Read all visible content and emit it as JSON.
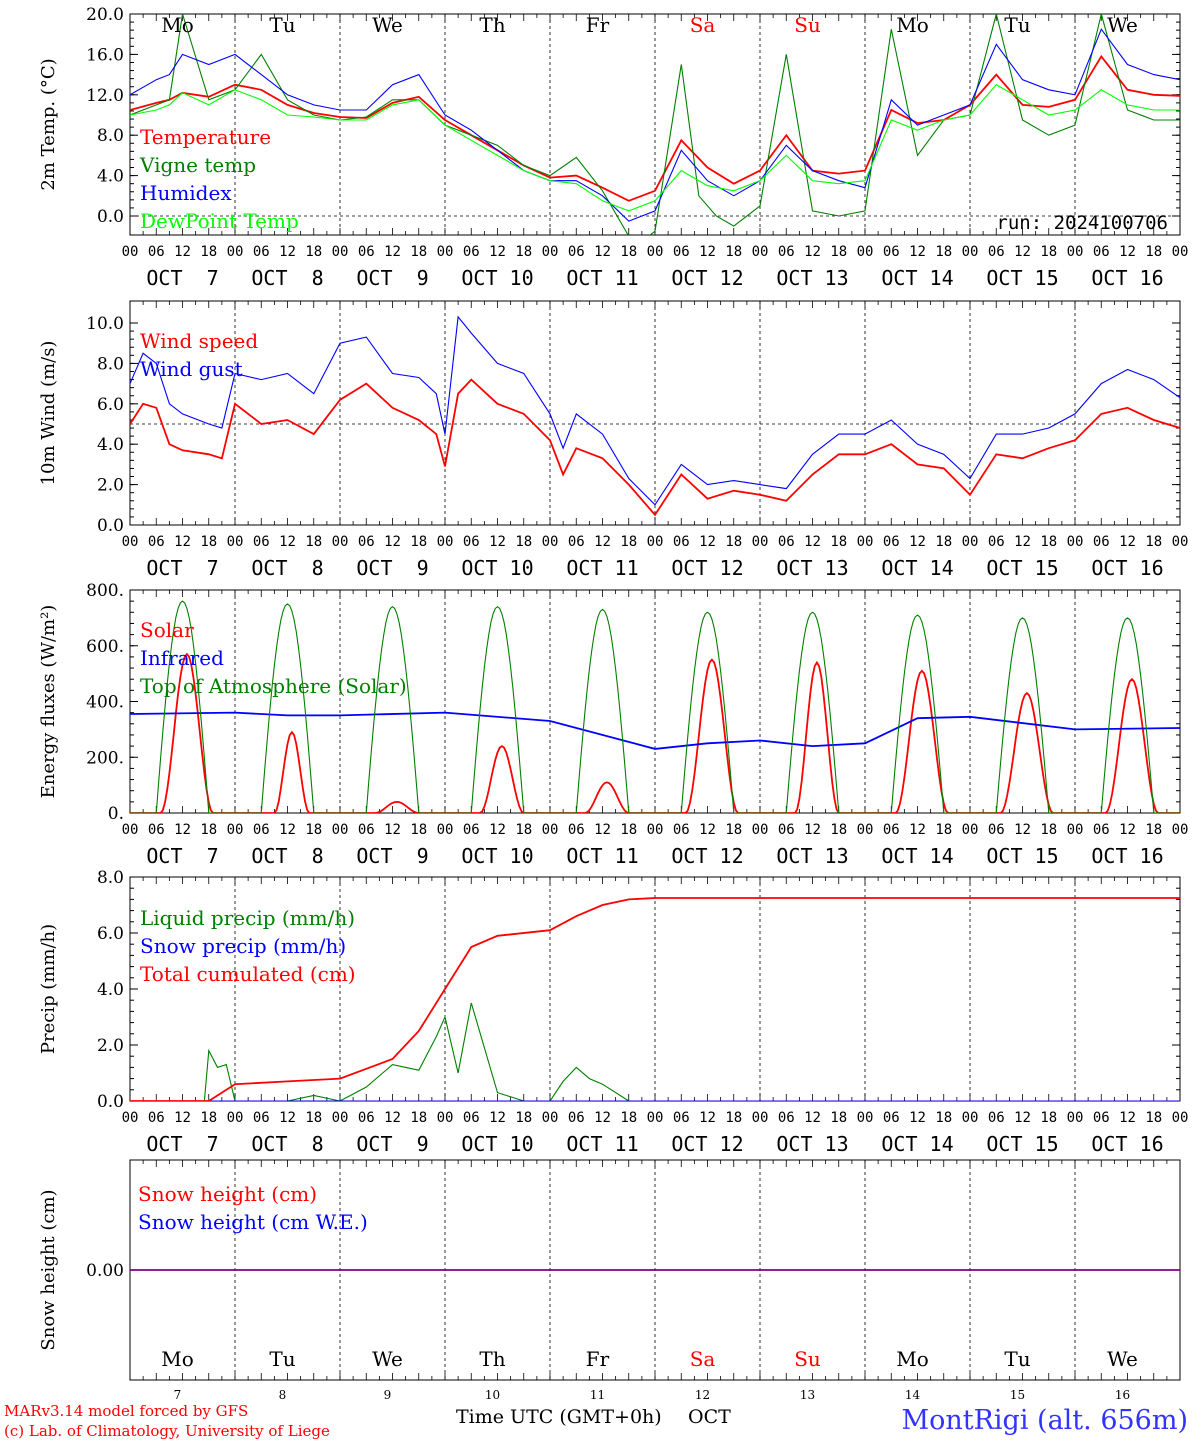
{
  "days": [
    "Mo",
    "Tu",
    "We",
    "Th",
    "Fr",
    "Sa",
    "Su",
    "Mo",
    "Tu",
    "We"
  ],
  "weekend_days": [
    5,
    6
  ],
  "dates": [
    "OCT  7",
    "OCT  8",
    "OCT  9",
    "OCT 10",
    "OCT 11",
    "OCT 12",
    "OCT 13",
    "OCT 14",
    "OCT 15",
    "OCT 16"
  ],
  "hour_labels": [
    "00",
    "06",
    "12",
    "18"
  ],
  "final_hour_label": "00",
  "footer": {
    "credit_line1": "MARv3.14 model forced by GFS",
    "credit_line2": "(c) Lab. of Climatology, University of Liege",
    "xlabel": "Time UTC (GMT+0h)",
    "month": "OCT",
    "station": "MontRigi (alt. 656m)",
    "day_numbers": [
      "7",
      "8",
      "9",
      "10",
      "11",
      "12",
      "13",
      "14",
      "15",
      "16"
    ]
  },
  "colors": {
    "red": "#ff0000",
    "green": "#008000",
    "blue": "#0000ff",
    "lightgreen": "#00ff00",
    "purple": "#800080",
    "station": "#3333ff"
  },
  "chart_data": [
    {
      "type": "line",
      "ylabel": "2m Temp. (°C)",
      "ylim": [
        -1,
        20
      ],
      "yticks": [
        "0.0",
        "4.0",
        "8.0",
        "12.0",
        "16.0",
        "20.0"
      ],
      "annotation": "run: 2024100706",
      "ref_line": 0,
      "x_unit": "hours since OCT 7 00 UTC",
      "series": [
        {
          "name": "Temperature",
          "color": "red",
          "x": [
            0,
            6,
            9,
            12,
            18,
            24,
            30,
            36,
            42,
            48,
            54,
            60,
            66,
            72,
            78,
            84,
            90,
            96,
            102,
            108,
            114,
            120,
            126,
            132,
            138,
            144,
            150,
            156,
            162,
            168,
            174,
            180,
            186,
            192,
            198,
            204,
            210,
            216,
            222,
            228,
            234,
            240
          ],
          "y": [
            10.5,
            11.2,
            11.5,
            12.2,
            11.8,
            13.0,
            12.5,
            11.0,
            10.2,
            9.8,
            9.7,
            11.2,
            11.8,
            9.5,
            8.0,
            6.5,
            5.0,
            3.8,
            4.0,
            2.8,
            1.5,
            2.5,
            7.5,
            4.8,
            3.2,
            4.5,
            8.0,
            4.5,
            4.2,
            4.5,
            10.5,
            9.2,
            9.5,
            11.0,
            14.0,
            11.0,
            10.8,
            11.5,
            15.8,
            12.5,
            12.0,
            11.9
          ]
        },
        {
          "name": "Vigne temp",
          "color": "green",
          "x": [
            0,
            6,
            9,
            12,
            18,
            24,
            30,
            36,
            42,
            48,
            54,
            60,
            66,
            72,
            78,
            84,
            90,
            96,
            102,
            108,
            114,
            117,
            120,
            126,
            130,
            134,
            138,
            144,
            150,
            156,
            162,
            168,
            174,
            180,
            186,
            192,
            198,
            204,
            210,
            216,
            222,
            228,
            234,
            240
          ],
          "y": [
            10.0,
            11.0,
            11.5,
            20.0,
            11.5,
            12.5,
            16.0,
            11.5,
            10.0,
            9.5,
            9.8,
            11.5,
            11.5,
            9.0,
            8.0,
            7.0,
            5.0,
            4.0,
            5.8,
            2.5,
            -2.0,
            -2.5,
            -1.5,
            15.0,
            2.0,
            0.0,
            -1.0,
            1.0,
            16.0,
            0.5,
            0.0,
            0.5,
            18.5,
            6.0,
            9.5,
            10.0,
            20.0,
            9.5,
            8.0,
            9.0,
            20.0,
            10.5,
            9.5,
            9.5
          ]
        },
        {
          "name": "Humidex",
          "color": "blue",
          "x": [
            0,
            6,
            9,
            12,
            18,
            24,
            30,
            36,
            42,
            48,
            54,
            60,
            66,
            72,
            78,
            84,
            90,
            96,
            102,
            108,
            114,
            120,
            126,
            132,
            138,
            144,
            150,
            156,
            162,
            168,
            174,
            180,
            186,
            192,
            198,
            204,
            210,
            216,
            222,
            228,
            234,
            240
          ],
          "y": [
            12.0,
            13.5,
            14.0,
            16.0,
            15.0,
            16.0,
            14.0,
            12.0,
            11.0,
            10.5,
            10.5,
            13.0,
            14.0,
            10.0,
            8.5,
            6.5,
            4.5,
            3.5,
            3.5,
            2.0,
            -0.5,
            0.5,
            6.5,
            3.5,
            2.0,
            3.5,
            7.0,
            4.5,
            3.5,
            2.8,
            11.5,
            9.0,
            10.0,
            11.0,
            17.0,
            13.5,
            12.5,
            12.0,
            18.5,
            15.0,
            14.0,
            13.5
          ]
        },
        {
          "name": "DewPoint Temp",
          "color": "lightgreen",
          "x": [
            0,
            6,
            9,
            12,
            18,
            24,
            30,
            36,
            42,
            48,
            54,
            60,
            66,
            72,
            78,
            84,
            90,
            96,
            102,
            108,
            114,
            120,
            126,
            132,
            138,
            144,
            150,
            156,
            162,
            168,
            174,
            180,
            186,
            192,
            198,
            204,
            210,
            216,
            222,
            228,
            234,
            240
          ],
          "y": [
            10.0,
            10.5,
            11.0,
            12.2,
            11.0,
            12.5,
            11.5,
            10.0,
            9.8,
            9.5,
            9.5,
            11.0,
            11.5,
            9.0,
            7.5,
            6.0,
            4.5,
            3.5,
            3.2,
            1.5,
            0.5,
            1.5,
            4.5,
            3.0,
            2.5,
            3.5,
            6.0,
            3.5,
            3.2,
            3.5,
            9.5,
            8.5,
            9.5,
            10.0,
            13.0,
            11.5,
            10.0,
            10.5,
            12.5,
            11.0,
            10.5,
            10.5
          ]
        }
      ]
    },
    {
      "type": "line",
      "ylabel": "10m Wind (m/s)",
      "ylim": [
        0,
        11
      ],
      "yticks": [
        "0.0",
        "2.0",
        "4.0",
        "6.0",
        "8.0",
        "10.0"
      ],
      "ref_line": 5,
      "x_unit": "hours since OCT 7 00 UTC",
      "series": [
        {
          "name": "Wind speed",
          "color": "red",
          "x": [
            0,
            3,
            6,
            9,
            12,
            18,
            21,
            24,
            30,
            36,
            42,
            48,
            54,
            60,
            66,
            70,
            72,
            75,
            78,
            84,
            90,
            96,
            99,
            102,
            108,
            114,
            120,
            126,
            132,
            138,
            144,
            150,
            156,
            162,
            168,
            174,
            180,
            186,
            192,
            198,
            204,
            210,
            216,
            222,
            228,
            234,
            240
          ],
          "y": [
            5.0,
            6.0,
            5.8,
            4.0,
            3.7,
            3.5,
            3.3,
            6.0,
            5.0,
            5.2,
            4.5,
            6.2,
            7.0,
            5.8,
            5.2,
            4.5,
            2.9,
            6.5,
            7.2,
            6.0,
            5.5,
            4.2,
            2.5,
            3.8,
            3.3,
            2.0,
            0.5,
            2.5,
            1.3,
            1.7,
            1.5,
            1.2,
            2.5,
            3.5,
            3.5,
            4.0,
            3.0,
            2.8,
            1.5,
            3.5,
            3.3,
            3.8,
            4.2,
            5.5,
            5.8,
            5.2,
            4.8
          ]
        },
        {
          "name": "Wind gust",
          "color": "blue",
          "x": [
            0,
            3,
            6,
            9,
            12,
            18,
            21,
            24,
            30,
            36,
            42,
            48,
            54,
            60,
            66,
            70,
            72,
            75,
            78,
            84,
            90,
            96,
            99,
            102,
            108,
            114,
            120,
            126,
            132,
            138,
            144,
            150,
            156,
            162,
            168,
            174,
            180,
            186,
            192,
            198,
            204,
            210,
            216,
            222,
            228,
            234,
            240
          ],
          "y": [
            7.0,
            8.5,
            8.0,
            6.0,
            5.5,
            5.0,
            4.8,
            7.5,
            7.2,
            7.5,
            6.5,
            9.0,
            9.3,
            7.5,
            7.3,
            6.5,
            4.5,
            10.3,
            9.5,
            8.0,
            7.5,
            5.5,
            3.8,
            5.5,
            4.5,
            2.3,
            1.0,
            3.0,
            2.0,
            2.2,
            2.0,
            1.8,
            3.5,
            4.5,
            4.5,
            5.2,
            4.0,
            3.5,
            2.3,
            4.5,
            4.5,
            4.8,
            5.5,
            7.0,
            7.7,
            7.2,
            6.3
          ]
        }
      ]
    },
    {
      "type": "line",
      "ylabel": "Energy fluxes (W/m²)",
      "ylim": [
        0,
        800
      ],
      "yticks": [
        "0.",
        "200.",
        "400.",
        "600.",
        "800."
      ],
      "x_unit": "hours since OCT 7 00 UTC",
      "series": [
        {
          "name": "Solar",
          "color": "red",
          "peak_hour": 13,
          "peaks": [
            570,
            290,
            40,
            240,
            110,
            550,
            540,
            510,
            430,
            480
          ],
          "halfwidth": [
            6,
            4,
            5,
            5,
            5,
            6,
            5,
            6,
            6,
            6
          ]
        },
        {
          "name": "Infrared",
          "color": "blue",
          "x": [
            0,
            24,
            36,
            48,
            72,
            96,
            120,
            132,
            144,
            156,
            168,
            180,
            192,
            216,
            240
          ],
          "y": [
            355,
            360,
            350,
            350,
            360,
            330,
            230,
            250,
            260,
            240,
            250,
            340,
            345,
            300,
            305
          ]
        },
        {
          "name": "Top of Atmosphere (Solar)",
          "color": "green",
          "peaks": [
            760,
            750,
            740,
            740,
            730,
            720,
            720,
            710,
            700,
            700
          ],
          "start_hour": 6,
          "end_hour": 18,
          "peak_hour": 12
        }
      ]
    },
    {
      "type": "line",
      "ylabel": "Precip (mm/h)",
      "ylim": [
        0,
        8
      ],
      "yticks": [
        "0.0",
        "2.0",
        "4.0",
        "6.0",
        "8.0"
      ],
      "x_unit": "hours since OCT 7 00 UTC",
      "series": [
        {
          "name": "Liquid precip (mm/h)",
          "color": "green",
          "x": [
            0,
            17,
            18,
            20,
            22,
            24,
            36,
            42,
            48,
            54,
            60,
            66,
            70,
            72,
            75,
            78,
            84,
            90,
            96,
            99,
            102,
            105,
            108,
            114,
            120,
            240
          ],
          "y": [
            0,
            0,
            1.8,
            1.2,
            1.3,
            0,
            0,
            0.2,
            0,
            0.5,
            1.3,
            1.1,
            2.3,
            3.0,
            1.0,
            3.5,
            0.3,
            0,
            0,
            0.7,
            1.2,
            0.8,
            0.6,
            0,
            0,
            0
          ]
        },
        {
          "name": "Snow precip (mm/h)",
          "color": "blue",
          "x": [
            0,
            240
          ],
          "y": [
            0,
            0
          ]
        },
        {
          "name": "Total cumulated (cm)",
          "color": "red",
          "x": [
            0,
            18,
            24,
            36,
            48,
            60,
            66,
            72,
            78,
            84,
            96,
            102,
            108,
            114,
            120,
            132,
            240
          ],
          "y": [
            0,
            0,
            0.6,
            0.7,
            0.8,
            1.5,
            2.5,
            4.0,
            5.5,
            5.9,
            6.1,
            6.6,
            7.0,
            7.2,
            7.25,
            7.25,
            7.25
          ]
        }
      ]
    },
    {
      "type": "line",
      "ylabel": "Snow height (cm)",
      "ylim": [
        -1,
        1
      ],
      "yticks": [
        "0.00"
      ],
      "x_unit": "hours since OCT 7 00 UTC",
      "series": [
        {
          "name": "Snow height (cm)",
          "color": "red",
          "x": [
            0,
            240
          ],
          "y": [
            0,
            0
          ]
        },
        {
          "name": "Snow height (cm W.E.)",
          "color": "blue",
          "x": [
            0,
            240
          ],
          "y": [
            0,
            0
          ]
        }
      ]
    }
  ]
}
